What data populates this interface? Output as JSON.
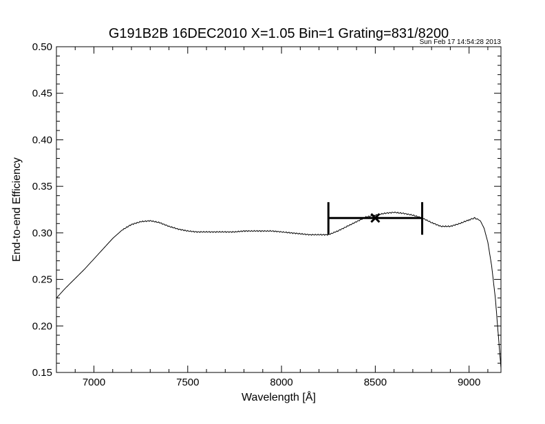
{
  "chart_data": {
    "type": "line",
    "title": "G191B2B 16DEC2010 X=1.05 Bin=1 Grating=831/8200",
    "timestamp": "Sun Feb 17 14:54:28 2013",
    "xlabel": "Wavelength [Å]",
    "ylabel": "End-to-end Efficiency",
    "xlim": [
      6800,
      9170
    ],
    "ylim": [
      0.15,
      0.5
    ],
    "xticks": [
      7000,
      7500,
      8000,
      8500,
      9000
    ],
    "xtick_labels": [
      "7000",
      "7500",
      "8000",
      "8500",
      "9000"
    ],
    "yticks": [
      0.15,
      0.2,
      0.25,
      0.3,
      0.35,
      0.4,
      0.45,
      0.5
    ],
    "ytick_labels": [
      "0.15",
      "0.20",
      "0.25",
      "0.30",
      "0.35",
      "0.40",
      "0.45",
      "0.50"
    ],
    "grid": false,
    "colors": {
      "line": "#000000",
      "background": "#ffffff"
    },
    "series": [
      {
        "x": [
          6800,
          6850,
          6900,
          6950,
          7000,
          7050,
          7100,
          7150,
          7200,
          7250,
          7300,
          7350,
          7400,
          7450,
          7500,
          7550,
          7600,
          7650,
          7700,
          7750,
          7800,
          7850,
          7900,
          7950,
          8000,
          8050,
          8100,
          8150,
          8200,
          8250,
          8300,
          8350,
          8400,
          8450,
          8500,
          8550,
          8600,
          8650,
          8700,
          8750,
          8800,
          8850,
          8900,
          8950,
          9000,
          9030,
          9060,
          9080,
          9100,
          9120,
          9140,
          9160,
          9170
        ],
        "y": [
          0.23,
          0.241,
          0.251,
          0.261,
          0.272,
          0.283,
          0.294,
          0.303,
          0.309,
          0.312,
          0.313,
          0.311,
          0.307,
          0.304,
          0.302,
          0.301,
          0.301,
          0.301,
          0.301,
          0.301,
          0.302,
          0.302,
          0.302,
          0.302,
          0.301,
          0.3,
          0.299,
          0.298,
          0.298,
          0.298,
          0.302,
          0.307,
          0.312,
          0.317,
          0.319,
          0.321,
          0.322,
          0.321,
          0.319,
          0.316,
          0.311,
          0.307,
          0.307,
          0.31,
          0.314,
          0.316,
          0.313,
          0.305,
          0.29,
          0.265,
          0.23,
          0.18,
          0.155
        ]
      }
    ],
    "annotations": [
      {
        "type": "x-marker",
        "x": 8500,
        "y": 0.316
      },
      {
        "type": "range-bar",
        "x_start": 8250,
        "x_end": 8750,
        "y": 0.316,
        "y_cap_low": 0.298,
        "y_cap_high": 0.333
      }
    ]
  }
}
